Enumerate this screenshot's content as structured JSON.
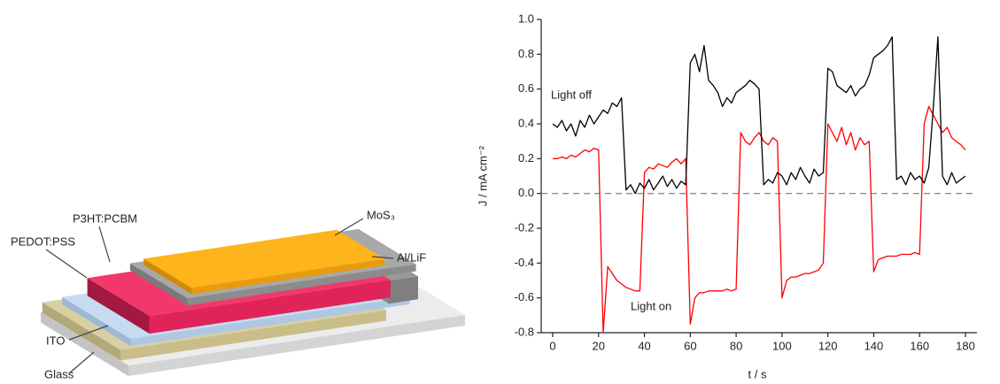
{
  "diagram": {
    "labels": [
      "P3HT:PCBM",
      "PEDOT:PSS",
      "MoS₃",
      "Al/LiF",
      "ITO",
      "Glass"
    ]
  },
  "chart_data": {
    "type": "line",
    "x_label": "t / s",
    "y_label": "J / mA cm⁻²",
    "x": [
      0,
      2,
      4,
      6,
      8,
      10,
      12,
      14,
      16,
      18,
      20,
      22,
      24,
      26,
      28,
      30,
      32,
      34,
      36,
      38,
      40,
      42,
      44,
      46,
      48,
      50,
      52,
      54,
      56,
      58,
      60,
      62,
      64,
      66,
      68,
      70,
      72,
      74,
      76,
      78,
      80,
      82,
      84,
      86,
      88,
      90,
      92,
      94,
      96,
      98,
      100,
      102,
      104,
      106,
      108,
      110,
      112,
      114,
      116,
      118,
      120,
      122,
      124,
      126,
      128,
      130,
      132,
      134,
      136,
      138,
      140,
      142,
      144,
      146,
      148,
      150,
      152,
      154,
      156,
      158,
      160,
      162,
      164,
      166,
      168,
      170,
      172,
      174,
      176,
      178,
      180
    ],
    "series": [
      {
        "name": "Light off",
        "color": "#000000",
        "values": [
          0.4,
          0.38,
          0.42,
          0.36,
          0.4,
          0.33,
          0.42,
          0.38,
          0.45,
          0.4,
          0.44,
          0.48,
          0.46,
          0.52,
          0.5,
          0.55,
          0.02,
          0.05,
          0.0,
          0.06,
          0.03,
          0.08,
          0.02,
          0.06,
          0.1,
          0.04,
          0.08,
          0.03,
          0.07,
          0.05,
          0.75,
          0.8,
          0.7,
          0.85,
          0.65,
          0.62,
          0.58,
          0.5,
          0.55,
          0.52,
          0.58,
          0.6,
          0.62,
          0.65,
          0.63,
          0.6,
          0.05,
          0.08,
          0.06,
          0.12,
          0.1,
          0.05,
          0.12,
          0.08,
          0.15,
          0.1,
          0.06,
          0.14,
          0.1,
          0.12,
          0.72,
          0.7,
          0.62,
          0.6,
          0.58,
          0.62,
          0.56,
          0.6,
          0.62,
          0.68,
          0.78,
          0.8,
          0.82,
          0.85,
          0.9,
          0.08,
          0.1,
          0.05,
          0.12,
          0.08,
          0.1,
          0.06,
          0.15,
          0.5,
          0.9,
          0.1,
          0.05,
          0.12,
          0.06,
          0.08,
          0.1
        ]
      },
      {
        "name": "Light on",
        "color": "#ff0000",
        "values": [
          0.2,
          0.2,
          0.21,
          0.2,
          0.22,
          0.21,
          0.23,
          0.25,
          0.24,
          0.26,
          0.25,
          -0.8,
          -0.42,
          -0.46,
          -0.5,
          -0.52,
          -0.54,
          -0.55,
          -0.56,
          -0.56,
          0.12,
          0.15,
          0.14,
          0.17,
          0.16,
          0.15,
          0.18,
          0.2,
          0.17,
          0.2,
          -0.75,
          -0.6,
          -0.57,
          -0.57,
          -0.56,
          -0.56,
          -0.56,
          -0.56,
          -0.55,
          -0.56,
          -0.55,
          0.35,
          0.3,
          0.28,
          0.32,
          0.35,
          0.3,
          0.28,
          0.32,
          0.3,
          -0.6,
          -0.5,
          -0.48,
          -0.48,
          -0.47,
          -0.46,
          -0.46,
          -0.45,
          -0.44,
          -0.4,
          0.4,
          0.35,
          0.3,
          0.38,
          0.28,
          0.35,
          0.25,
          0.32,
          0.28,
          0.3,
          -0.45,
          -0.38,
          -0.37,
          -0.36,
          -0.36,
          -0.36,
          -0.35,
          -0.35,
          -0.35,
          -0.34,
          -0.35,
          0.4,
          0.5,
          0.45,
          0.4,
          0.35,
          0.38,
          0.32,
          0.3,
          0.28,
          0.25
        ]
      }
    ],
    "xlim": [
      -5,
      185
    ],
    "xticks": [
      0,
      20,
      40,
      60,
      80,
      100,
      120,
      140,
      160,
      180
    ],
    "ylim": [
      -0.8,
      1.0
    ],
    "yticks": [
      -0.8,
      -0.6,
      -0.4,
      -0.2,
      {
        "value": 0,
        "label": "0.0"
      },
      0.2,
      0.4,
      0.6,
      0.8,
      {
        "value": 1,
        "label": "1.0"
      }
    ],
    "reference_line": 0
  }
}
